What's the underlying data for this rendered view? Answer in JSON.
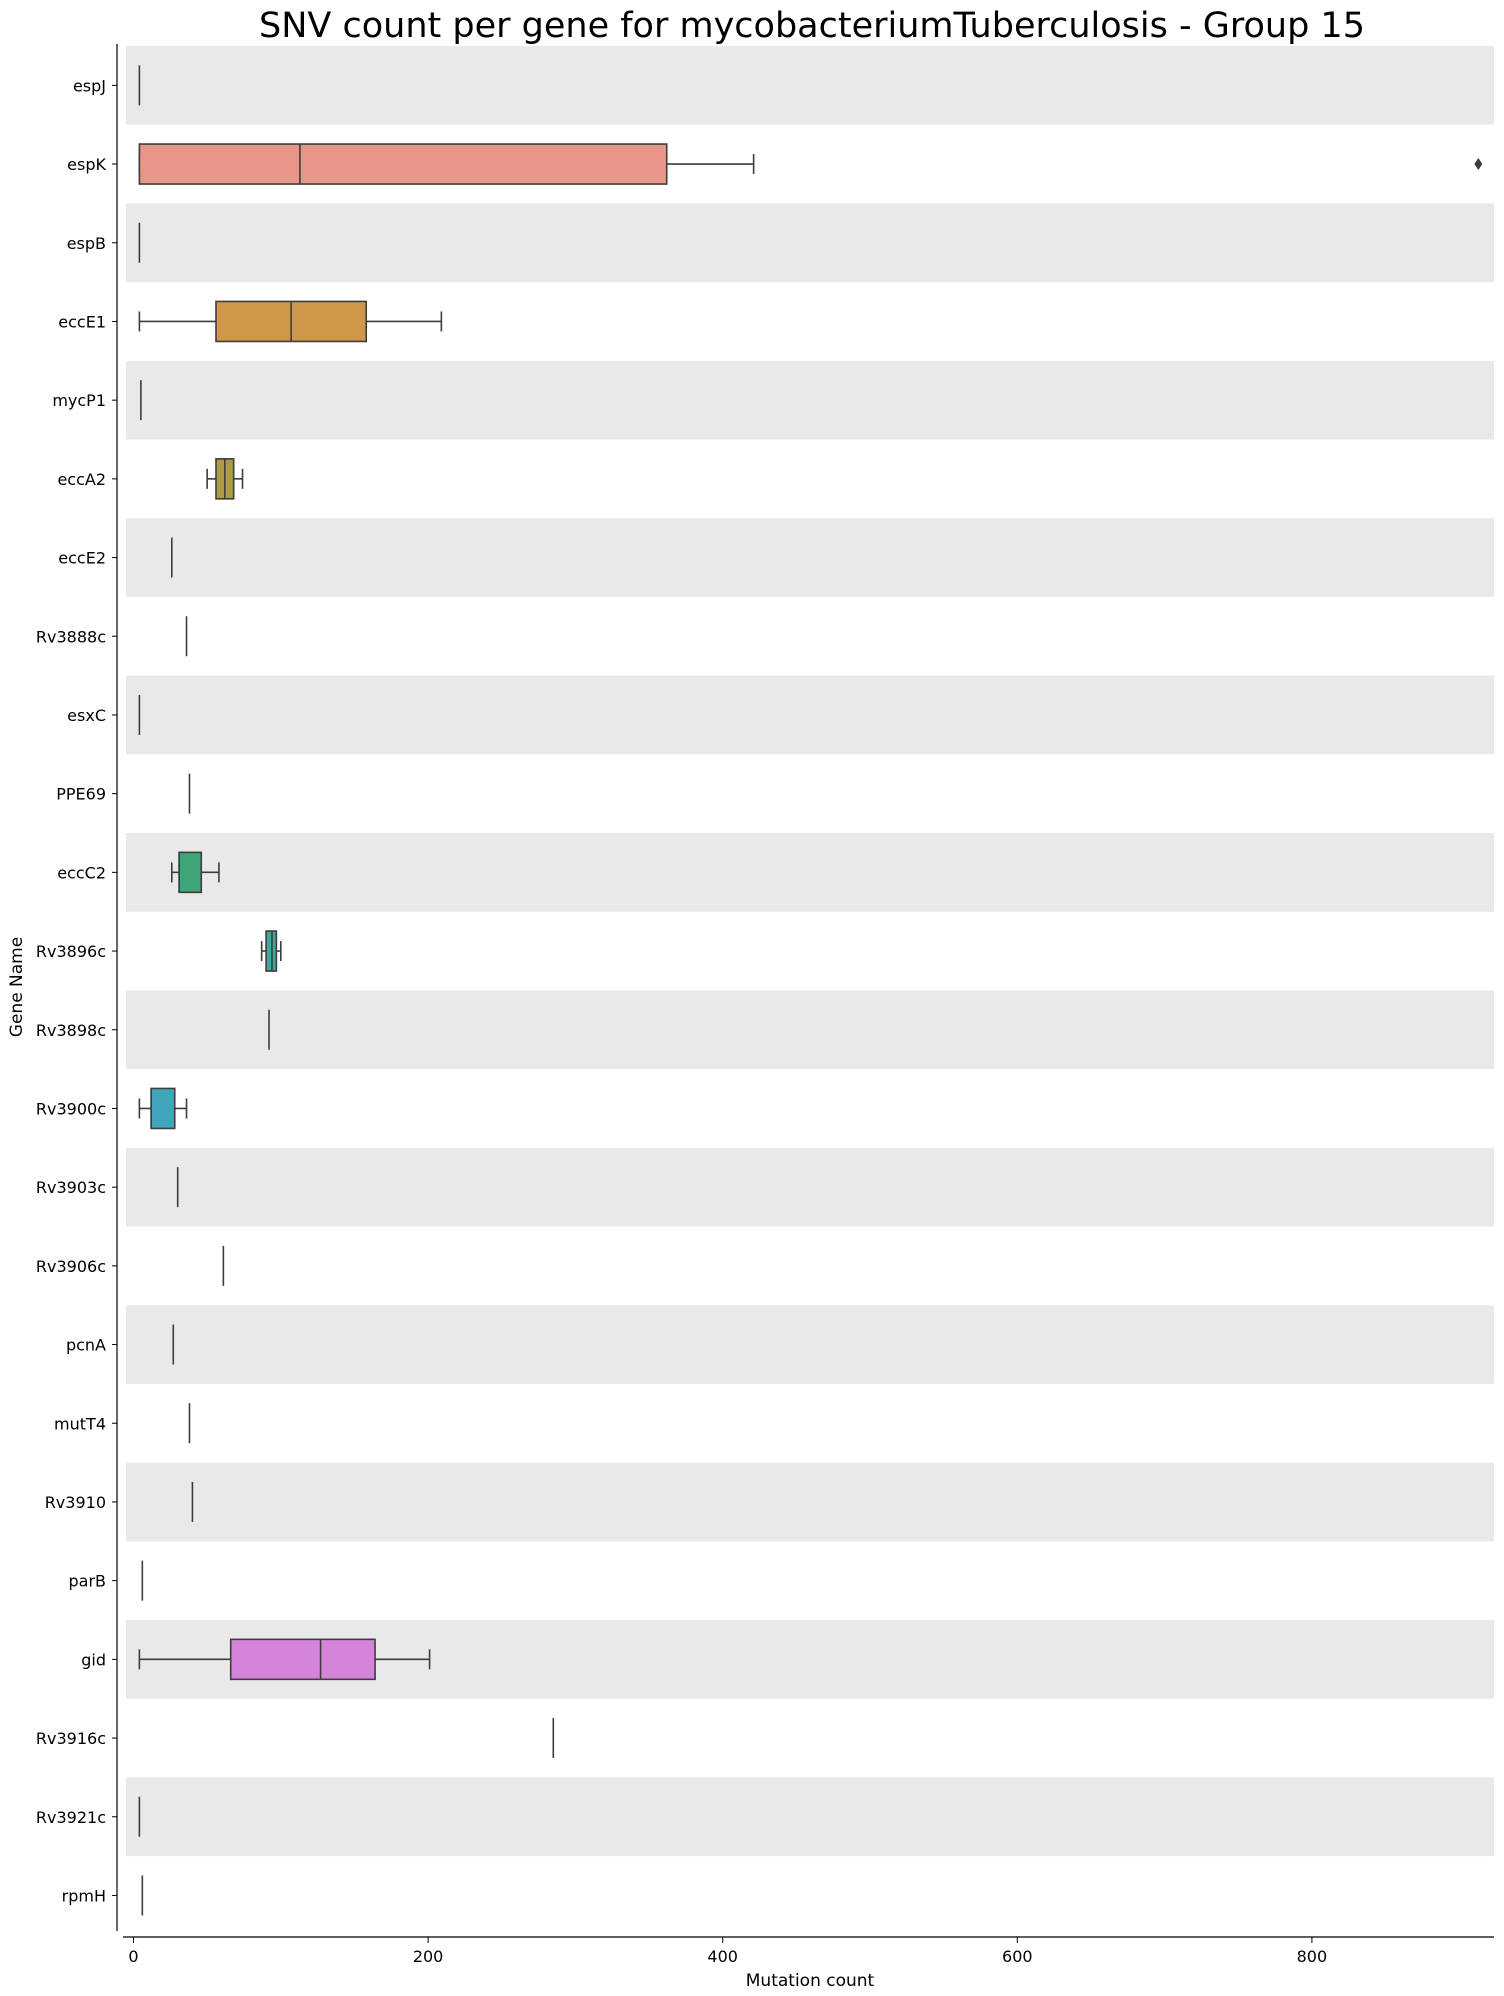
{
  "chart_data": {
    "type": "boxplot",
    "orientation": "horizontal",
    "title": "SNV count per gene for mycobacteriumTuberculosis - Group 15",
    "xlabel": "Mutation count",
    "ylabel": "Gene Name",
    "xlim": [
      -10,
      923
    ],
    "xticks": [
      0,
      200,
      400,
      600,
      800
    ],
    "grid": false,
    "row_stripes": true,
    "stripe_color": "#e9e9e9",
    "box_edge_color": "#3d3d3d",
    "categories": [
      "espJ",
      "espK",
      "espB",
      "eccE1",
      "mycP1",
      "eccA2",
      "eccE2",
      "Rv3888c",
      "esxC",
      "PPE69",
      "eccC2",
      "Rv3896c",
      "Rv3898c",
      "Rv3900c",
      "Rv3903c",
      "Rv3906c",
      "pcnA",
      "mutT4",
      "Rv3910",
      "parB",
      "gid",
      "Rv3916c",
      "Rv3921c",
      "rpmH"
    ],
    "boxes": [
      {
        "gene": "espJ",
        "min": 4,
        "q1": 4,
        "median": 4,
        "q3": 4,
        "max": 4
      },
      {
        "gene": "espK",
        "min": 4,
        "q1": 4,
        "median": 113,
        "q3": 362,
        "max": 421,
        "outliers": [
          913
        ],
        "color": "#e8968a"
      },
      {
        "gene": "espB",
        "min": 4,
        "q1": 4,
        "median": 4,
        "q3": 4,
        "max": 4
      },
      {
        "gene": "eccE1",
        "min": 4,
        "q1": 56,
        "median": 107,
        "q3": 158,
        "max": 209,
        "color": "#d09748"
      },
      {
        "gene": "mycP1",
        "min": 5,
        "q1": 5,
        "median": 5,
        "q3": 5,
        "max": 5
      },
      {
        "gene": "eccA2",
        "min": 50,
        "q1": 56,
        "median": 62,
        "q3": 68,
        "max": 74,
        "color": "#ae9c45"
      },
      {
        "gene": "eccE2",
        "min": 26,
        "q1": 26,
        "median": 26,
        "q3": 26,
        "max": 26
      },
      {
        "gene": "Rv3888c",
        "min": 36,
        "q1": 36,
        "median": 36,
        "q3": 36,
        "max": 36
      },
      {
        "gene": "esxC",
        "min": 4,
        "q1": 4,
        "median": 4,
        "q3": 4,
        "max": 4
      },
      {
        "gene": "PPE69",
        "min": 38,
        "q1": 38,
        "median": 38,
        "q3": 38,
        "max": 38
      },
      {
        "gene": "eccC2",
        "min": 26,
        "q1": 31,
        "median": 31,
        "q3": 46,
        "max": 58,
        "color": "#3ea579"
      },
      {
        "gene": "Rv3896c",
        "min": 87,
        "q1": 90,
        "median": 94,
        "q3": 97,
        "max": 100,
        "color": "#44a59a"
      },
      {
        "gene": "Rv3898c",
        "min": 92,
        "q1": 92,
        "median": 92,
        "q3": 92,
        "max": 92
      },
      {
        "gene": "Rv3900c",
        "min": 4,
        "q1": 12,
        "median": 12,
        "q3": 28,
        "max": 36,
        "color": "#3ea6b8"
      },
      {
        "gene": "Rv3903c",
        "min": 30,
        "q1": 30,
        "median": 30,
        "q3": 30,
        "max": 30
      },
      {
        "gene": "Rv3906c",
        "min": 61,
        "q1": 61,
        "median": 61,
        "q3": 61,
        "max": 61
      },
      {
        "gene": "pcnA",
        "min": 27,
        "q1": 27,
        "median": 27,
        "q3": 27,
        "max": 27
      },
      {
        "gene": "mutT4",
        "min": 38,
        "q1": 38,
        "median": 38,
        "q3": 38,
        "max": 38
      },
      {
        "gene": "Rv3910",
        "min": 40,
        "q1": 40,
        "median": 40,
        "q3": 40,
        "max": 40
      },
      {
        "gene": "parB",
        "min": 6,
        "q1": 6,
        "median": 6,
        "q3": 6,
        "max": 6
      },
      {
        "gene": "gid",
        "min": 4,
        "q1": 66,
        "median": 127,
        "q3": 164,
        "max": 201,
        "color": "#d485d9"
      },
      {
        "gene": "Rv3916c",
        "min": 285,
        "q1": 285,
        "median": 285,
        "q3": 285,
        "max": 285
      },
      {
        "gene": "Rv3921c",
        "min": 4,
        "q1": 4,
        "median": 4,
        "q3": 4,
        "max": 4
      },
      {
        "gene": "rpmH",
        "min": 6,
        "q1": 6,
        "median": 6,
        "q3": 6,
        "max": 6
      }
    ]
  }
}
